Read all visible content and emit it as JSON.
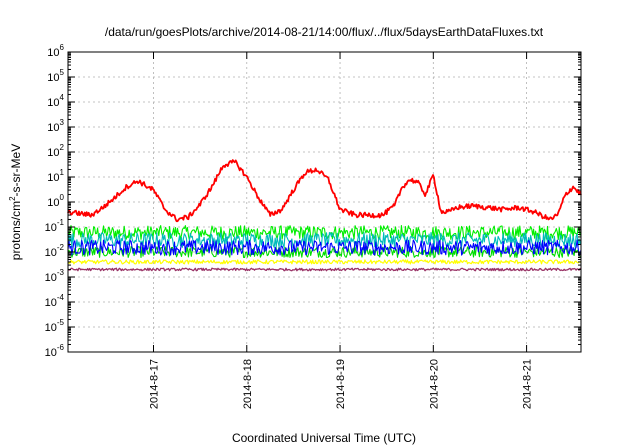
{
  "chart_data": {
    "type": "line",
    "title": "/data/run/goesPlots/archive/2014-08-21/14:00/flux/../flux/5daysEarthDataFluxes.txt",
    "xlabel": "Coordinated Universal Time (UTC)",
    "ylabel": "protons/cm²-s-sr-MeV",
    "ylabel_parts": {
      "pre": "protons/cm",
      "sup": "2",
      "post": "-s-sr-MeV"
    },
    "y_scale": "log",
    "ylim": [
      1e-06,
      1000000.0
    ],
    "y_ticks": [
      {
        "exp": "-6"
      },
      {
        "exp": "-5"
      },
      {
        "exp": "-4"
      },
      {
        "exp": "-3"
      },
      {
        "exp": "-2"
      },
      {
        "exp": "-1"
      },
      {
        "exp": "0"
      },
      {
        "exp": "1"
      },
      {
        "exp": "2"
      },
      {
        "exp": "3"
      },
      {
        "exp": "4"
      },
      {
        "exp": "5"
      },
      {
        "exp": "6"
      }
    ],
    "y_tick_base": "10",
    "xlim": [
      "2014-08-16 02:00",
      "2014-08-21 14:00"
    ],
    "x_ticks": [
      "2014-8-17",
      "2014-8-18",
      "2014-8-19",
      "2014-8-20",
      "2014-8-21"
    ],
    "grid": true,
    "series": [
      {
        "color": "#ff0000",
        "x": [
          "2014-08-16 02:00",
          "2014-08-16 08:00",
          "2014-08-16 11:00",
          "2014-08-16 14:00",
          "2014-08-16 17:00",
          "2014-08-16 20:00",
          "2014-08-17 00:00",
          "2014-08-17 03:00",
          "2014-08-17 06:00",
          "2014-08-17 09:00",
          "2014-08-17 12:00",
          "2014-08-17 15:00",
          "2014-08-17 18:00",
          "2014-08-17 21:00",
          "2014-08-18 00:00",
          "2014-08-18 03:00",
          "2014-08-18 06:00",
          "2014-08-18 09:00",
          "2014-08-18 12:00",
          "2014-08-18 15:00",
          "2014-08-18 18:00",
          "2014-08-18 21:00",
          "2014-08-19 00:00",
          "2014-08-19 04:00",
          "2014-08-19 08:00",
          "2014-08-19 11:00",
          "2014-08-19 14:00",
          "2014-08-19 16:00",
          "2014-08-19 18:00",
          "2014-08-19 20:00",
          "2014-08-19 22:00",
          "2014-08-20 00:00",
          "2014-08-20 02:00",
          "2014-08-20 04:00",
          "2014-08-20 06:00",
          "2014-08-20 10:00",
          "2014-08-20 14:00",
          "2014-08-20 18:00",
          "2014-08-20 22:00",
          "2014-08-21 02:00",
          "2014-08-21 06:00",
          "2014-08-21 08:00",
          "2014-08-21 10:00",
          "2014-08-21 12:00",
          "2014-08-21 14:00"
        ],
        "y": [
          0.4,
          0.3,
          0.6,
          1.5,
          4,
          7,
          3,
          0.5,
          0.2,
          0.25,
          0.8,
          4,
          30,
          40,
          10,
          1.5,
          0.3,
          0.5,
          3,
          15,
          20,
          8,
          0.5,
          0.3,
          0.3,
          0.3,
          0.7,
          4,
          8,
          6,
          2,
          12,
          0.4,
          0.4,
          0.6,
          0.7,
          0.6,
          0.5,
          0.6,
          0.4,
          0.2,
          0.3,
          2,
          4,
          2
        ]
      },
      {
        "color": "#00ee00",
        "x": [
          "2014-08-16 02:00",
          "2014-08-21 14:00"
        ],
        "y": [
          0.06,
          0.06
        ]
      },
      {
        "color": "#00bbbb",
        "x": [
          "2014-08-16 02:00",
          "2014-08-21 14:00"
        ],
        "y": [
          0.03,
          0.03
        ]
      },
      {
        "color": "#0000ff",
        "x": [
          "2014-08-16 02:00",
          "2014-08-21 14:00"
        ],
        "y": [
          0.015,
          0.015
        ]
      },
      {
        "color": "#00dd00",
        "x": [
          "2014-08-16 02:00",
          "2014-08-21 14:00"
        ],
        "y": [
          0.01,
          0.01
        ]
      },
      {
        "color": "#ffff00",
        "x": [
          "2014-08-16 02:00",
          "2014-08-21 14:00"
        ],
        "y": [
          0.004,
          0.004
        ]
      },
      {
        "color": "#993366",
        "x": [
          "2014-08-16 02:00",
          "2014-08-21 14:00"
        ],
        "y": [
          0.002,
          0.002
        ]
      }
    ]
  }
}
